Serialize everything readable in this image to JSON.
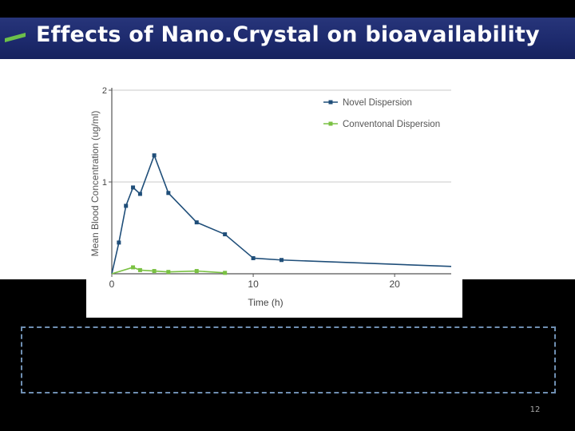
{
  "slide": {
    "title": "Effects of Nano.Crystal on bioavailability",
    "page_number": "12",
    "accent_color": "#6cc04a",
    "title_bar_color": "#1d2a6d"
  },
  "chart_data": {
    "type": "line",
    "xlabel": "Time (h)",
    "ylabel": "Mean Blood Concentration (ug/ml)",
    "xlim": [
      0,
      24
    ],
    "ylim": [
      0,
      2
    ],
    "x_ticks": [
      "0",
      "10",
      "20"
    ],
    "y_ticks": [
      "1",
      "2"
    ],
    "grid": "horizontal",
    "legend_position": "top-right",
    "series": [
      {
        "name": "Novel Dispersion",
        "color": "#1f4e79",
        "points": [
          [
            0,
            0
          ],
          [
            0.5,
            0.34
          ],
          [
            1,
            0.74
          ],
          [
            1.5,
            0.94
          ],
          [
            2,
            0.87
          ],
          [
            3,
            1.29
          ],
          [
            4,
            0.88
          ],
          [
            6,
            0.56
          ],
          [
            8,
            0.43
          ],
          [
            10,
            0.17
          ],
          [
            12,
            0.15
          ],
          [
            24,
            0.08
          ]
        ],
        "markers": [
          [
            0.5,
            0.34
          ],
          [
            1,
            0.74
          ],
          [
            1.5,
            0.94
          ],
          [
            2,
            0.87
          ],
          [
            3,
            1.29
          ],
          [
            4,
            0.88
          ],
          [
            6,
            0.56
          ],
          [
            8,
            0.43
          ],
          [
            10,
            0.17
          ],
          [
            12,
            0.15
          ]
        ]
      },
      {
        "name": "Conventonal Dispersion",
        "color": "#7ac143",
        "points": [
          [
            0,
            0
          ],
          [
            1.5,
            0.07
          ],
          [
            2,
            0.04
          ],
          [
            3,
            0.03
          ],
          [
            4,
            0.02
          ],
          [
            6,
            0.03
          ],
          [
            8,
            0.01
          ]
        ],
        "markers": [
          [
            1.5,
            0.07
          ],
          [
            2,
            0.04
          ],
          [
            3,
            0.03
          ],
          [
            4,
            0.02
          ],
          [
            6,
            0.03
          ],
          [
            8,
            0.01
          ]
        ]
      }
    ]
  }
}
